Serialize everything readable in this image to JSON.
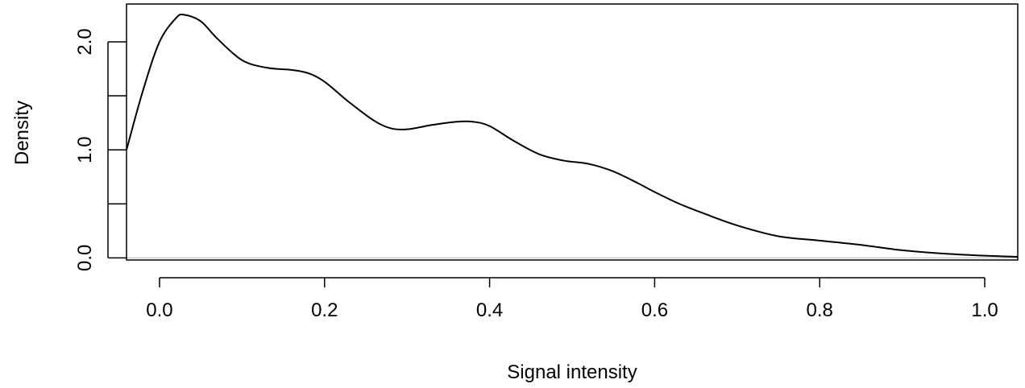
{
  "chart_data": {
    "type": "line",
    "title": "",
    "xlabel": "Signal intensity",
    "ylabel": "Density",
    "xlim": [
      -0.04,
      1.04
    ],
    "ylim": [
      -0.02,
      2.35
    ],
    "xticks": [
      0.0,
      0.2,
      0.4,
      0.6,
      0.8,
      1.0
    ],
    "xtick_labels": [
      "0.0",
      "0.2",
      "0.4",
      "0.6",
      "0.8",
      "1.0"
    ],
    "yticks": [
      0.0,
      0.5,
      1.0,
      1.5,
      2.0
    ],
    "ytick_labels": [
      "0.0",
      "",
      "1.0",
      "",
      "2.0"
    ],
    "baseline": 0,
    "baseline_color": "#bebebe",
    "line_color": "#000000",
    "grid": false,
    "legend": "none",
    "series": [
      {
        "x": [
          -0.04,
          -0.02,
          0.0,
          0.02,
          0.03,
          0.05,
          0.07,
          0.1,
          0.13,
          0.16,
          0.18,
          0.2,
          0.23,
          0.26,
          0.28,
          0.3,
          0.33,
          0.36,
          0.38,
          0.4,
          0.43,
          0.46,
          0.49,
          0.52,
          0.55,
          0.58,
          0.6,
          0.63,
          0.66,
          0.7,
          0.75,
          0.8,
          0.85,
          0.9,
          0.95,
          1.0,
          1.04
        ],
        "y": [
          1.0,
          1.55,
          2.0,
          2.22,
          2.25,
          2.19,
          2.03,
          1.83,
          1.76,
          1.74,
          1.71,
          1.63,
          1.44,
          1.27,
          1.2,
          1.19,
          1.23,
          1.26,
          1.26,
          1.22,
          1.08,
          0.96,
          0.9,
          0.87,
          0.8,
          0.69,
          0.61,
          0.5,
          0.41,
          0.3,
          0.2,
          0.16,
          0.12,
          0.07,
          0.04,
          0.02,
          0.01
        ]
      }
    ]
  }
}
